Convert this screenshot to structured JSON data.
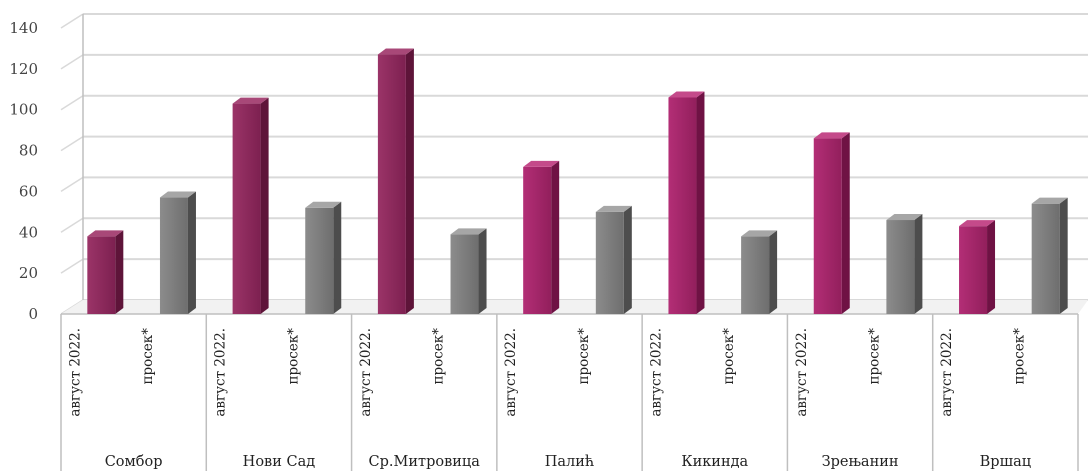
{
  "chart_data": {
    "type": "bar",
    "groups": [
      "Сомбор",
      "Нови Сад",
      "Ср.Митровица",
      "Палић",
      "Кикинда",
      "Зрењанин",
      "Вршац"
    ],
    "sub_categories": [
      "август 2022.",
      "просек*"
    ],
    "series": [
      {
        "values": [
          38,
          103,
          127,
          72,
          106,
          86,
          43
        ]
      },
      {
        "values": [
          57,
          52,
          39,
          50,
          38,
          46,
          54
        ]
      }
    ],
    "ylim": [
      0,
      140
    ],
    "yticks": [
      0,
      20,
      40,
      60,
      80,
      100,
      120,
      140
    ],
    "grid": true,
    "three_d": true,
    "legend": "none",
    "colors": {
      "august_first_groups": "#8e2a5c",
      "august_last_groups": "#a5266a",
      "average": "#7f7f7f",
      "grid": "#d9d9d9",
      "axis": "#bfbfbf"
    }
  }
}
